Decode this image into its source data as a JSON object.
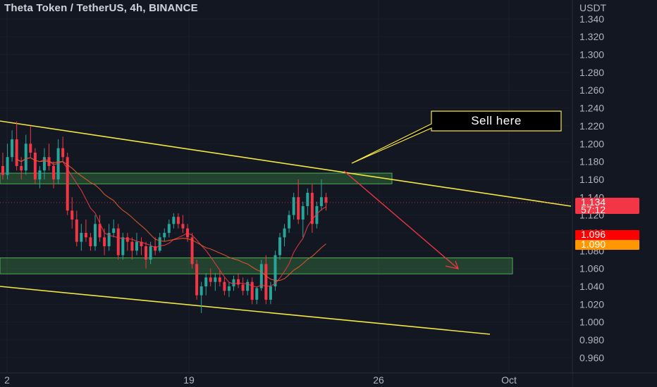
{
  "header": {
    "title": "Theta Token / TetherUS, 4h, BINANCE"
  },
  "chart_data": {
    "type": "candlestick",
    "symbol": "Theta Token / TetherUS",
    "interval": "4h",
    "exchange": "BINANCE",
    "y_axis_label": "USDT",
    "ylim": [
      0.95,
      1.35
    ],
    "y_ticks": [
      "1.340",
      "1.320",
      "1.300",
      "1.280",
      "1.260",
      "1.240",
      "1.220",
      "1.200",
      "1.180",
      "1.160",
      "1.140",
      "1.120",
      "1.100",
      "1.080",
      "1.060",
      "1.040",
      "1.020",
      "1.000",
      "0.980",
      "0.960"
    ],
    "x_ticks": [
      "2",
      "19",
      "26",
      "Oct"
    ],
    "price_labels": [
      {
        "value": "1.134",
        "sub": "57:12",
        "color": "#f23645"
      },
      {
        "value": "1.096",
        "color": "#ff0000"
      },
      {
        "value": "1.090",
        "color": "#ff9800"
      }
    ],
    "candles": [
      [
        1.175,
        1.19,
        1.16,
        1.165
      ],
      [
        1.165,
        1.2,
        1.16,
        1.185
      ],
      [
        1.185,
        1.215,
        1.18,
        1.205
      ],
      [
        1.205,
        1.225,
        1.17,
        1.175
      ],
      [
        1.175,
        1.185,
        1.16,
        1.17
      ],
      [
        1.17,
        1.21,
        1.165,
        1.2
      ],
      [
        1.2,
        1.22,
        1.185,
        1.19
      ],
      [
        1.19,
        1.195,
        1.155,
        1.16
      ],
      [
        1.16,
        1.175,
        1.15,
        1.17
      ],
      [
        1.17,
        1.195,
        1.16,
        1.185
      ],
      [
        1.185,
        1.2,
        1.17,
        1.175
      ],
      [
        1.175,
        1.18,
        1.15,
        1.16
      ],
      [
        1.16,
        1.205,
        1.155,
        1.195
      ],
      [
        1.195,
        1.208,
        1.18,
        1.185
      ],
      [
        1.185,
        1.19,
        1.12,
        1.125
      ],
      [
        1.125,
        1.14,
        1.105,
        1.115
      ],
      [
        1.115,
        1.125,
        1.085,
        1.09
      ],
      [
        1.09,
        1.11,
        1.08,
        1.1
      ],
      [
        1.1,
        1.115,
        1.09,
        1.095
      ],
      [
        1.095,
        1.1,
        1.08,
        1.085
      ],
      [
        1.085,
        1.12,
        1.08,
        1.11
      ],
      [
        1.11,
        1.12,
        1.09,
        1.095
      ],
      [
        1.095,
        1.105,
        1.075,
        1.085
      ],
      [
        1.085,
        1.11,
        1.08,
        1.1
      ],
      [
        1.1,
        1.115,
        1.095,
        1.105
      ],
      [
        1.105,
        1.11,
        1.07,
        1.075
      ],
      [
        1.075,
        1.1,
        1.07,
        1.095
      ],
      [
        1.095,
        1.1,
        1.08,
        1.09
      ],
      [
        1.09,
        1.095,
        1.07,
        1.08
      ],
      [
        1.08,
        1.1,
        1.075,
        1.09
      ],
      [
        1.09,
        1.095,
        1.075,
        1.085
      ],
      [
        1.085,
        1.09,
        1.06,
        1.07
      ],
      [
        1.07,
        1.09,
        1.065,
        1.085
      ],
      [
        1.085,
        1.095,
        1.075,
        1.08
      ],
      [
        1.08,
        1.1,
        1.078,
        1.095
      ],
      [
        1.095,
        1.105,
        1.09,
        1.1
      ],
      [
        1.1,
        1.115,
        1.095,
        1.11
      ],
      [
        1.11,
        1.122,
        1.105,
        1.118
      ],
      [
        1.118,
        1.122,
        1.105,
        1.11
      ],
      [
        1.11,
        1.12,
        1.1,
        1.105
      ],
      [
        1.105,
        1.11,
        1.09,
        1.095
      ],
      [
        1.095,
        1.1,
        1.06,
        1.065
      ],
      [
        1.065,
        1.07,
        1.025,
        1.03
      ],
      [
        1.03,
        1.045,
        1.01,
        1.04
      ],
      [
        1.04,
        1.055,
        1.03,
        1.05
      ],
      [
        1.05,
        1.06,
        1.04,
        1.045
      ],
      [
        1.045,
        1.055,
        1.035,
        1.05
      ],
      [
        1.05,
        1.058,
        1.04,
        1.045
      ],
      [
        1.045,
        1.05,
        1.03,
        1.035
      ],
      [
        1.035,
        1.045,
        1.028,
        1.04
      ],
      [
        1.04,
        1.052,
        1.035,
        1.048
      ],
      [
        1.048,
        1.055,
        1.038,
        1.042
      ],
      [
        1.042,
        1.05,
        1.03,
        1.035
      ],
      [
        1.035,
        1.048,
        1.03,
        1.045
      ],
      [
        1.045,
        1.05,
        1.02,
        1.025
      ],
      [
        1.025,
        1.04,
        1.02,
        1.038
      ],
      [
        1.038,
        1.07,
        1.035,
        1.065
      ],
      [
        1.065,
        1.075,
        1.02,
        1.025
      ],
      [
        1.025,
        1.045,
        1.02,
        1.04
      ],
      [
        1.04,
        1.08,
        1.035,
        1.075
      ],
      [
        1.075,
        1.1,
        1.07,
        1.095
      ],
      [
        1.095,
        1.11,
        1.085,
        1.105
      ],
      [
        1.105,
        1.125,
        1.1,
        1.12
      ],
      [
        1.12,
        1.145,
        1.115,
        1.14
      ],
      [
        1.14,
        1.16,
        1.11,
        1.115
      ],
      [
        1.115,
        1.135,
        1.095,
        1.13
      ],
      [
        1.13,
        1.15,
        1.12,
        1.145
      ],
      [
        1.145,
        1.155,
        1.1,
        1.11
      ],
      [
        1.11,
        1.135,
        1.105,
        1.13
      ],
      [
        1.13,
        1.16,
        1.125,
        1.14
      ],
      [
        1.14,
        1.145,
        1.125,
        1.134
      ]
    ],
    "indicators": [
      {
        "name": "",
        "color": "#f23645"
      },
      {
        "name": "",
        "color": "#e65c2e"
      }
    ],
    "zones": [
      {
        "low": 1.155,
        "high": 1.167,
        "color": "#4caf50"
      },
      {
        "low": 1.054,
        "high": 1.072,
        "color": "#4caf50"
      }
    ],
    "trendlines_color": "#f5e642",
    "annotation": {
      "text": "Sell here"
    }
  }
}
